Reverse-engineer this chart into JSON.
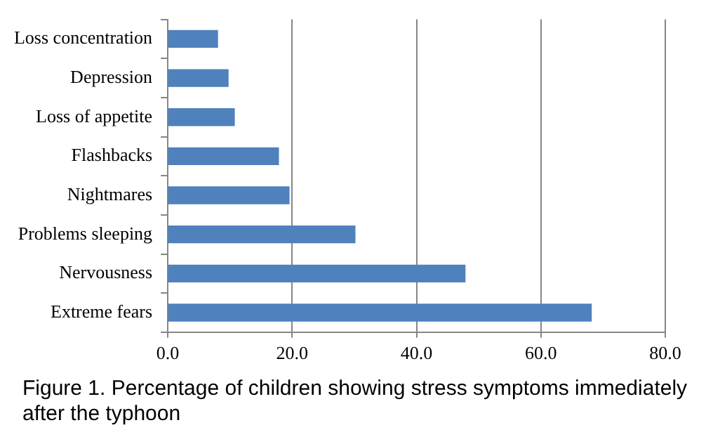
{
  "chart_data": {
    "type": "bar",
    "orientation": "horizontal",
    "title": "Figure 1. Percentage of children showing stress symptoms immediately after the typhoon",
    "categories": [
      "Loss concentration",
      "Depression",
      "Loss of appetite",
      "Flashbacks",
      "Nightmares",
      "Problems sleeping",
      "Nervousness",
      "Extreme fears"
    ],
    "values": [
      8.0,
      9.7,
      10.7,
      17.8,
      19.5,
      30.1,
      47.8,
      68.1
    ],
    "color": "#4f81bd",
    "xlim": [
      0,
      80
    ],
    "xticks": [
      {
        "value": 0,
        "label": "0.0"
      },
      {
        "value": 20,
        "label": "20.0"
      },
      {
        "value": 40,
        "label": "40.0"
      },
      {
        "value": 60,
        "label": "60.0"
      },
      {
        "value": 80,
        "label": "80.0"
      }
    ],
    "grid": "x",
    "legend": false
  }
}
